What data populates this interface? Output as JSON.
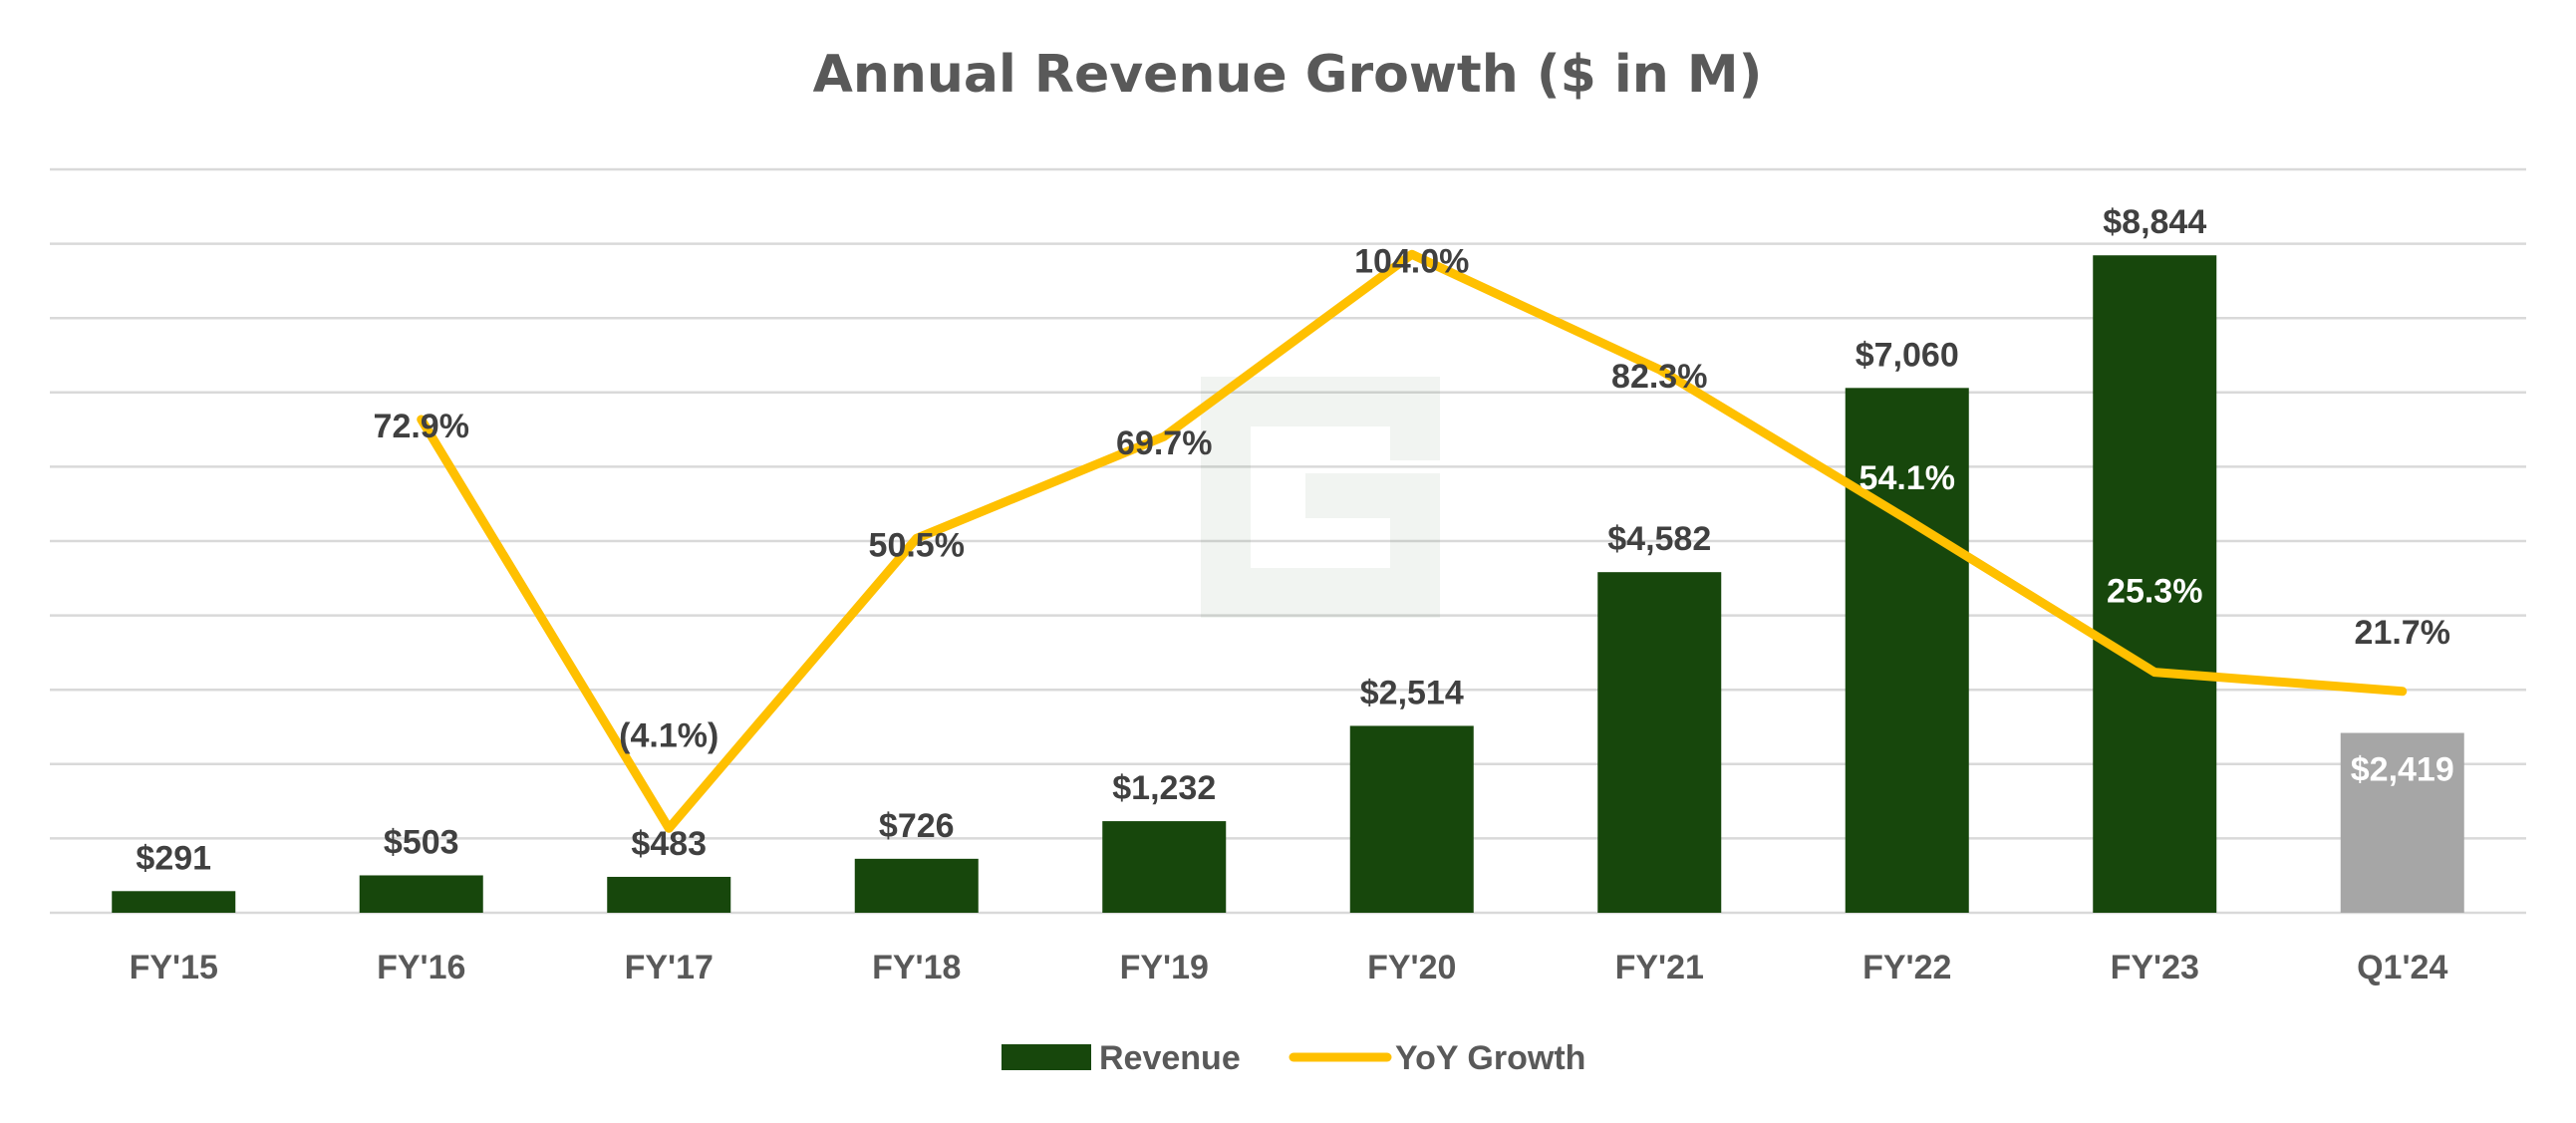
{
  "chart_data": {
    "type": "bar",
    "title": "Annual Revenue Growth ($ in M)",
    "categories": [
      "FY'15",
      "FY'16",
      "FY'17",
      "FY'18",
      "FY'19",
      "FY'20",
      "FY'21",
      "FY'22",
      "FY'23",
      "Q1'24"
    ],
    "series": [
      {
        "name": "Revenue",
        "type": "bar",
        "values": [
          291,
          503,
          483,
          726,
          1232,
          2514,
          4582,
          7060,
          8844,
          2419
        ],
        "labels": [
          "$291",
          "$503",
          "$483",
          "$726",
          "$1,232",
          "$2,514",
          "$4,582",
          "$7,060",
          "$8,844",
          "$2,419"
        ],
        "color": "#17470C",
        "highlight_color": "#A6A6A6",
        "highlight_index": 9
      },
      {
        "name": "YoY Growth",
        "type": "line",
        "values": [
          null,
          72.9,
          -4.1,
          50.5,
          69.7,
          104.0,
          82.3,
          54.1,
          25.3,
          21.7
        ],
        "labels": [
          "",
          "72.9%",
          "(4.1%)",
          "50.5%",
          "69.7%",
          "104.0%",
          "82.3%",
          "54.1%",
          "25.3%",
          "21.7%"
        ],
        "color": "#FFC000"
      }
    ],
    "xlabel": "",
    "ylabel": "",
    "ylim": [
      0,
      10000
    ],
    "y2lim": [
      -20,
      120
    ],
    "grid": true,
    "legend": "bottom",
    "watermark": "stylized G logo"
  }
}
